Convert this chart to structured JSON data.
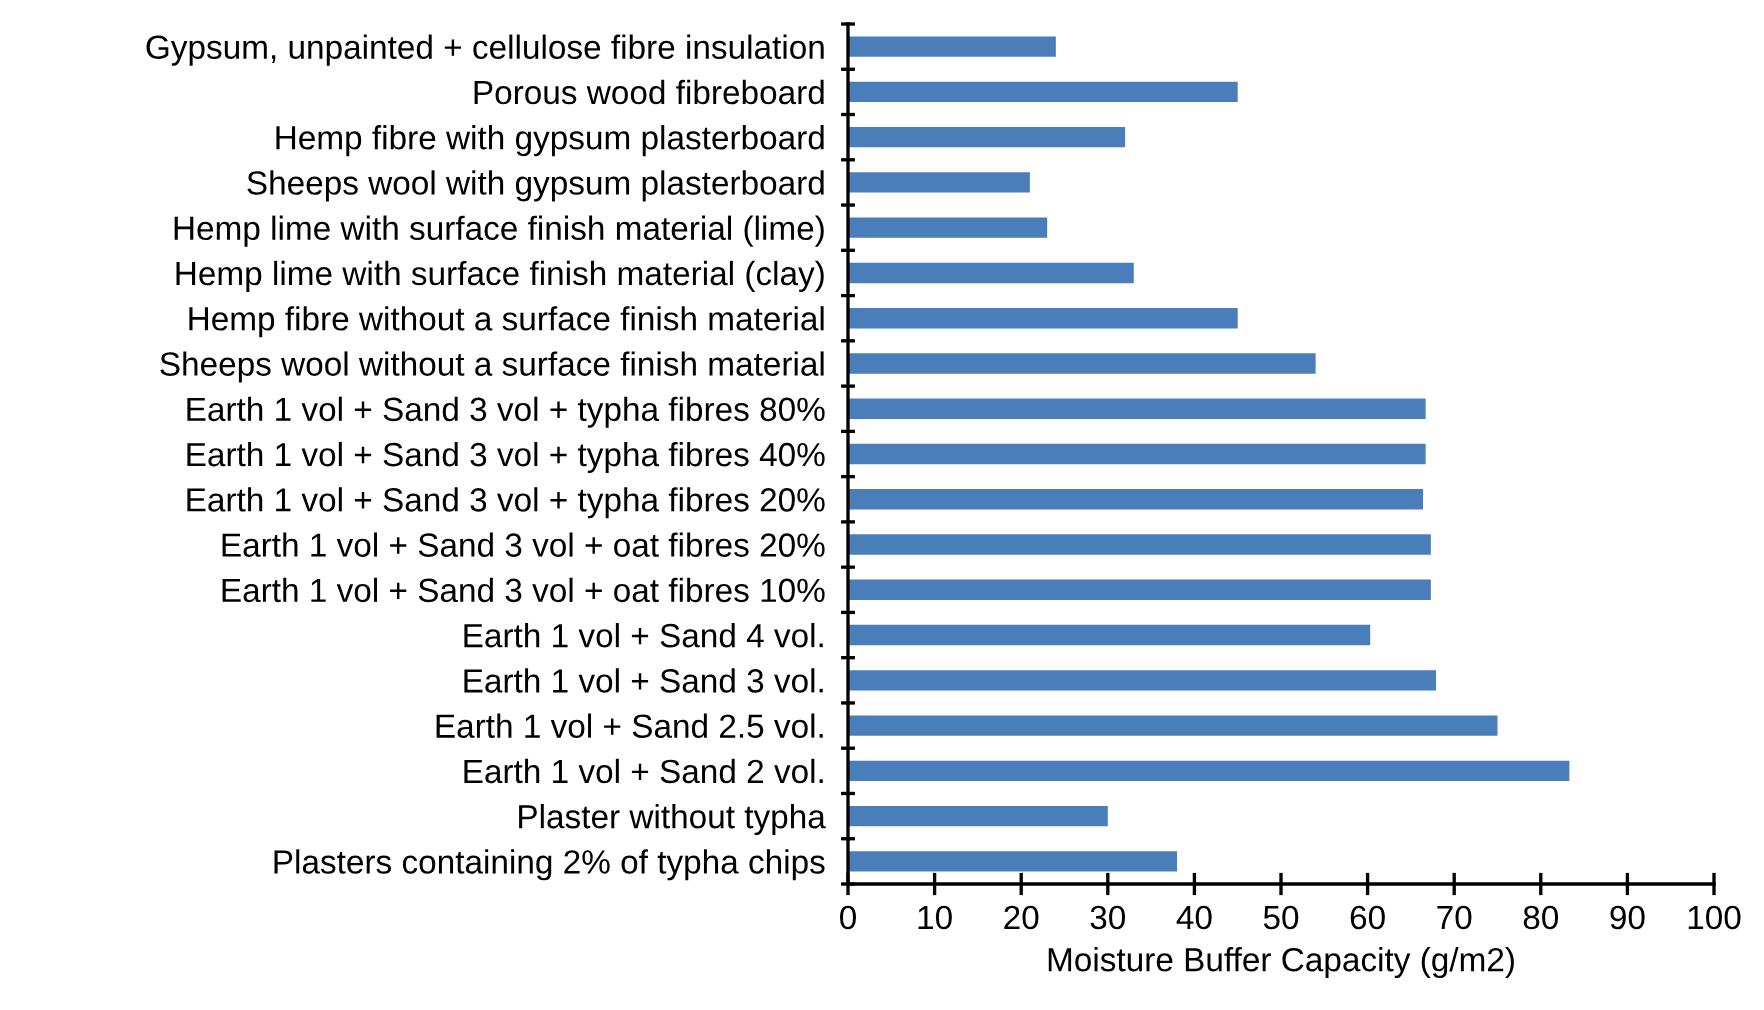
{
  "chart_data": {
    "type": "bar",
    "orientation": "horizontal",
    "xlabel": "Moisture Buffer Capacity (g/m2)",
    "categories": [
      "Gypsum, unpainted + cellulose fibre insulation",
      "Porous wood fibreboard",
      "Hemp fibre with gypsum plasterboard",
      "Sheeps wool with gypsum plasterboard",
      "Hemp lime with surface finish material (lime)",
      "Hemp lime with surface finish material (clay)",
      "Hemp fibre without a surface finish material",
      "Sheeps wool without a surface finish material",
      "Earth 1 vol + Sand 3 vol + typha fibres 80%",
      "Earth 1 vol + Sand 3 vol + typha fibres 40%",
      "Earth 1 vol + Sand 3 vol + typha fibres 20%",
      "Earth 1 vol + Sand 3 vol + oat fibres 20%",
      "Earth 1 vol + Sand 3 vol + oat fibres 10%",
      "Earth 1 vol + Sand 4 vol.",
      "Earth 1 vol + Sand 3 vol.",
      "Earth 1 vol + Sand 2.5 vol.",
      "Earth 1 vol + Sand 2 vol.",
      "Plaster without typha",
      "Plasters containing 2% of typha chips"
    ],
    "values": [
      24,
      45,
      32,
      21,
      23,
      33,
      45,
      54,
      66.7,
      66.7,
      66.4,
      67.3,
      67.3,
      60.3,
      67.9,
      75,
      83.3,
      30,
      38
    ],
    "color": "#4a7ebb",
    "xlim": [
      0,
      100
    ],
    "xticks": [
      0,
      10,
      20,
      30,
      40,
      50,
      60,
      70,
      80,
      90,
      100
    ],
    "grid": false
  }
}
